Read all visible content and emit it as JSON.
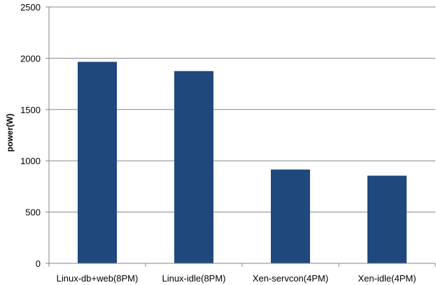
{
  "chart_data": {
    "type": "bar",
    "categories": [
      "Linux-db+web(8PM)",
      "Linux-idle(8PM)",
      "Xen-servcon(4PM)",
      "Xen-idle(4PM)"
    ],
    "values": [
      1965,
      1875,
      915,
      855
    ],
    "ylabel": "power(W)",
    "xlabel": "",
    "ylim": [
      0,
      2500
    ],
    "yticks": [
      0,
      500,
      1000,
      1500,
      2000,
      2500
    ],
    "grid": true,
    "bar_color": "#1F497D",
    "grid_color": "#868686"
  }
}
